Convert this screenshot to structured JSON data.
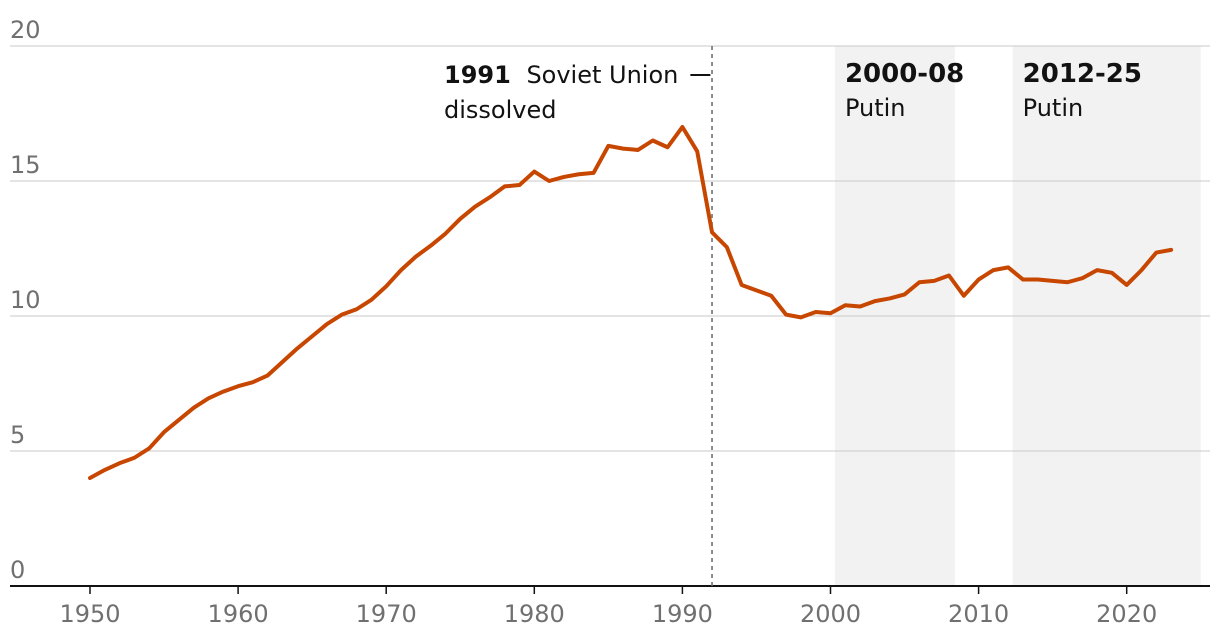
{
  "chart_data": {
    "type": "line",
    "title": "",
    "xlabel": "",
    "ylabel": "",
    "xlim": [
      1950,
      2025
    ],
    "ylim": [
      0,
      20
    ],
    "x_ticks": [
      "1950",
      "1960",
      "1970",
      "1980",
      "1990",
      "2000",
      "2010",
      "2020"
    ],
    "y_ticks": [
      "0",
      "5",
      "10",
      "15",
      "20"
    ],
    "grid": true,
    "series": [
      {
        "name": "",
        "color": "#c74600",
        "x": [
          1950,
          1951,
          1952,
          1953,
          1954,
          1955,
          1956,
          1957,
          1958,
          1959,
          1960,
          1961,
          1962,
          1963,
          1964,
          1965,
          1966,
          1967,
          1968,
          1969,
          1970,
          1971,
          1972,
          1973,
          1974,
          1975,
          1976,
          1977,
          1978,
          1979,
          1980,
          1981,
          1982,
          1983,
          1984,
          1985,
          1986,
          1987,
          1988,
          1989,
          1990,
          1991,
          1992,
          1993,
          1994,
          1995,
          1996,
          1997,
          1998,
          1999,
          2000,
          2001,
          2002,
          2003,
          2004,
          2005,
          2006,
          2007,
          2008,
          2009,
          2010,
          2011,
          2012,
          2013,
          2014,
          2015,
          2016,
          2017,
          2018,
          2019,
          2020,
          2021,
          2022,
          2023
        ],
        "y": [
          4.0,
          4.3,
          4.55,
          4.75,
          5.1,
          5.7,
          6.15,
          6.6,
          6.95,
          7.2,
          7.4,
          7.55,
          7.8,
          8.3,
          8.8,
          9.25,
          9.7,
          10.05,
          10.25,
          10.6,
          11.1,
          11.7,
          12.2,
          12.6,
          13.05,
          13.6,
          14.05,
          14.4,
          14.8,
          14.85,
          15.35,
          15.0,
          15.15,
          15.25,
          15.3,
          16.3,
          16.2,
          16.15,
          16.5,
          16.25,
          17.0,
          16.1,
          13.1,
          12.55,
          11.15,
          10.95,
          10.75,
          10.05,
          9.95,
          10.15,
          10.1,
          10.4,
          10.35,
          10.55,
          10.65,
          10.8,
          11.25,
          11.3,
          11.5,
          10.75,
          11.35,
          11.7,
          11.8,
          11.35,
          11.35,
          11.3,
          11.25,
          11.4,
          11.7,
          11.6,
          11.15,
          11.7,
          12.35,
          12.45
        ]
      }
    ],
    "annotations": {
      "dissolution": {
        "x": 1992,
        "year": "1991",
        "text_line1": "Soviet Union",
        "text_line2": "dissolved"
      },
      "bands": [
        {
          "x_start": 2000.3,
          "x_end": 2008.4,
          "title": "2000-08",
          "subtitle": "Putin"
        },
        {
          "x_start": 2012.3,
          "x_end": 2025.0,
          "title": "2012-25",
          "subtitle": "Putin"
        }
      ]
    },
    "colors": {
      "line": "#c74600",
      "band": "#f2f2f2",
      "grid": "#c9c9c9",
      "axis": "#121212",
      "dashed": "#707070"
    }
  }
}
